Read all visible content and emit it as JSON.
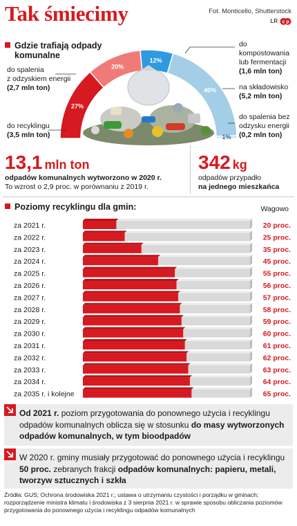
{
  "header": {
    "title": "Tak śmiecimy",
    "credit": "Fot. Monticello, Shutterstock",
    "logo_text": "LR"
  },
  "section1": {
    "heading_line1": "Gdzie trafiają odpady",
    "heading_line2": "komunalne",
    "segments": [
      {
        "pct_label": "27%",
        "value": 27,
        "label_lines": [
          "do recyklingu"
        ],
        "amount": "(3,5 mln ton)"
      },
      {
        "pct_label": "20%",
        "value": 20,
        "label_lines": [
          "do spalenia",
          "z odzyskiem energii"
        ],
        "amount": "(2,7 mln ton)"
      },
      {
        "pct_label": "12%",
        "value": 12,
        "label_lines": [
          "do",
          "kompostowania",
          "lub fermentacji"
        ],
        "amount": "(1,6 mln ton)"
      },
      {
        "pct_label": "40%",
        "value": 40,
        "label_lines": [
          "na składowisko"
        ],
        "amount": "(5,2 mln ton)"
      },
      {
        "pct_label": "1%",
        "value": 1,
        "label_lines": [
          "do spalenia bez",
          "odzysku energii"
        ],
        "amount": "(0,2 mln ton)"
      }
    ]
  },
  "stats": {
    "left_big": "13,1",
    "left_unit": "mln ton",
    "left_line1": "odpadów komunalnych wytworzono w 2020 r.",
    "left_line2": "To wzrost o 2,9 proc. w porównaniu z 2019 r.",
    "right_big": "342",
    "right_unit": "kg",
    "right_line1": "odpadów przypadło",
    "right_line2": "na jednego mieszkańca"
  },
  "section2": {
    "heading": "Poziomy recyklingu dla gmin:",
    "weight_label": "Wagowo"
  },
  "chart_data": [
    {
      "type": "pie",
      "title": "Gdzie trafiają odpady komunalne",
      "categories": [
        "do recyklingu",
        "do spalenia z odzyskiem energii",
        "do kompostowania lub fermentacji",
        "na składowisko",
        "do spalenia bez odzysku energii"
      ],
      "values": [
        27,
        20,
        12,
        40,
        1
      ],
      "amounts_mln_ton": [
        3.5,
        2.7,
        1.6,
        5.2,
        0.2
      ],
      "colors": [
        "#d71920",
        "#f07a78",
        "#2e9be0",
        "#a4cde8",
        "#c8dff0"
      ]
    },
    {
      "type": "bar",
      "title": "Poziomy recyklingu dla gmin:",
      "categories": [
        "za 2021 r.",
        "za 2022 r.",
        "za 2023 r.",
        "za 2024 r.",
        "za 2025 r.",
        "za 2026 r.",
        "za 2027 r.",
        "za 2028 r.",
        "za 2029 r.",
        "za 2030 r.",
        "za 2031 r.",
        "za 2032 r.",
        "za 2033 r.",
        "za 2034 r.",
        "za 2035 r. i kolejne"
      ],
      "values": [
        20,
        25,
        35,
        45,
        55,
        56,
        57,
        58,
        59,
        60,
        61,
        62,
        63,
        64,
        65
      ],
      "value_labels": [
        "20 proc.",
        "25 proc.",
        "35 proc.",
        "45 proc.",
        "55 proc.",
        "56 proc.",
        "57 proc.",
        "58 proc.",
        "59 proc.",
        "60 proc.",
        "61 proc.",
        "62 proc.",
        "63 proc.",
        "64 proc.",
        "65 proc."
      ],
      "ylim": [
        0,
        100
      ],
      "colors": {
        "filled": "#d71920",
        "rest": "#d9d9d9"
      }
    }
  ],
  "info": {
    "box1_lead": "Od 2021 r.",
    "box1_mid": " poziom przygotowania do ponownego użycia i recyklingu odpadów komunalnych oblicza się w stosunku ",
    "box1_bold": "do masy wytworzonych odpadów komunalnych, w tym bioodpadów",
    "box2_lead": "W 2020 r. gminy musiały przygotować do ponownego użycia i recyklingu ",
    "box2_bold1": "50 proc.",
    "box2_mid": " zebranych frakcji ",
    "box2_bold2": "odpadów komunalnych: papieru, metali, tworzyw sztucznych i szkła"
  },
  "source": "Źródła: GUS; Ochrona środowiska 2021 r.; ustawa o utrzymaniu czystości i porządku w gminach; rozporządzenie ministra klimatu i środowiska z 3 sierpnia 2021 r. w sprawie sposobu obliczania poziomów przygotowania do ponownego użycia i recyklingu odpadów komunalnych"
}
